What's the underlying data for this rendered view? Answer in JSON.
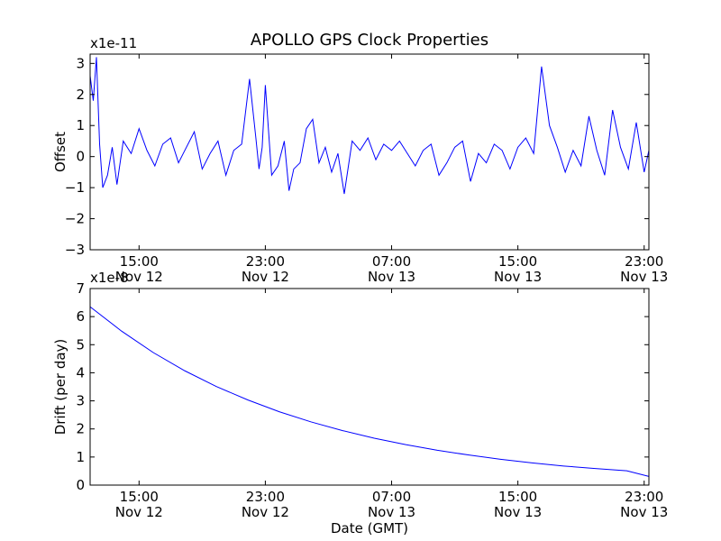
{
  "figure": {
    "title": "APOLLO GPS Clock Properties",
    "xlabel": "Date (GMT)"
  },
  "colors": {
    "line": "#0000ff",
    "axes": "#000000",
    "background": "#ffffff"
  },
  "chart_data": [
    {
      "type": "line",
      "title": "APOLLO GPS Clock Properties",
      "ylabel": "Offset",
      "exponent_label": "x1e-11",
      "xlim_hours": [
        11.9,
        47.3
      ],
      "ylim": [
        -3,
        3.3
      ],
      "yticks": [
        -3,
        -2,
        -1,
        0,
        1,
        2,
        3
      ],
      "xticks": [
        {
          "hour": 15,
          "time": "15:00",
          "date": "Nov 12"
        },
        {
          "hour": 23,
          "time": "23:00",
          "date": "Nov 12"
        },
        {
          "hour": 31,
          "time": "07:00",
          "date": "Nov 13"
        },
        {
          "hour": 39,
          "time": "15:00",
          "date": "Nov 13"
        },
        {
          "hour": 47,
          "time": "23:00",
          "date": "Nov 13"
        }
      ],
      "series": [
        {
          "name": "offset",
          "description": "noisy clock offset fluctuating mostly between -1 and 1 (x1e-11) with spikes",
          "x": [
            11.9,
            12.1,
            12.3,
            12.5,
            12.7,
            13.0,
            13.3,
            13.6,
            14.0,
            14.5,
            15.0,
            15.5,
            16.0,
            16.5,
            17.0,
            17.5,
            18.0,
            18.5,
            19.0,
            19.5,
            20.0,
            20.5,
            21.0,
            21.5,
            22.0,
            22.4,
            22.6,
            22.8,
            23.0,
            23.4,
            23.8,
            24.2,
            24.5,
            24.8,
            25.2,
            25.6,
            26.0,
            26.4,
            26.8,
            27.2,
            27.6,
            28.0,
            28.5,
            29.0,
            29.5,
            30.0,
            30.5,
            31.0,
            31.5,
            32.0,
            32.5,
            33.0,
            33.5,
            34.0,
            34.5,
            35.0,
            35.5,
            36.0,
            36.5,
            37.0,
            37.5,
            38.0,
            38.5,
            39.0,
            39.5,
            40.0,
            40.5,
            41.0,
            41.5,
            42.0,
            42.5,
            43.0,
            43.5,
            44.0,
            44.5,
            45.0,
            45.5,
            46.0,
            46.5,
            47.0,
            47.3
          ],
          "values": [
            2.6,
            1.8,
            3.2,
            0.4,
            -1.0,
            -0.6,
            0.3,
            -0.9,
            0.5,
            0.1,
            0.9,
            0.2,
            -0.3,
            0.4,
            0.6,
            -0.2,
            0.3,
            0.8,
            -0.4,
            0.1,
            0.5,
            -0.6,
            0.2,
            0.4,
            2.5,
            0.6,
            -0.4,
            0.3,
            2.3,
            -0.6,
            -0.3,
            0.5,
            -1.1,
            -0.4,
            -0.2,
            0.9,
            1.2,
            -0.2,
            0.3,
            -0.5,
            0.1,
            -1.2,
            0.5,
            0.2,
            0.6,
            -0.1,
            0.4,
            0.2,
            0.5,
            0.1,
            -0.3,
            0.2,
            0.4,
            -0.6,
            -0.2,
            0.3,
            0.5,
            -0.8,
            0.1,
            -0.2,
            0.4,
            0.2,
            -0.4,
            0.3,
            0.6,
            0.1,
            2.9,
            1.0,
            0.3,
            -0.5,
            0.2,
            -0.3,
            1.3,
            0.2,
            -0.6,
            1.5,
            0.3,
            -0.4,
            1.1,
            -0.5,
            0.2
          ]
        }
      ]
    },
    {
      "type": "line",
      "title": "",
      "ylabel": "Drift (per day)",
      "exponent_label": "x1e-8",
      "xlabel": "Date (GMT)",
      "xlim_hours": [
        11.9,
        47.3
      ],
      "ylim": [
        0,
        7
      ],
      "yticks": [
        0,
        1,
        2,
        3,
        4,
        5,
        6,
        7
      ],
      "xticks": [
        {
          "hour": 15,
          "time": "15:00",
          "date": "Nov 12"
        },
        {
          "hour": 23,
          "time": "23:00",
          "date": "Nov 12"
        },
        {
          "hour": 31,
          "time": "07:00",
          "date": "Nov 13"
        },
        {
          "hour": 39,
          "time": "15:00",
          "date": "Nov 13"
        },
        {
          "hour": 47,
          "time": "23:00",
          "date": "Nov 13"
        }
      ],
      "series": [
        {
          "name": "drift",
          "x": [
            11.9,
            13.9,
            15.9,
            17.9,
            19.9,
            21.9,
            23.9,
            25.9,
            27.9,
            29.9,
            31.9,
            33.9,
            35.9,
            37.9,
            39.9,
            41.9,
            43.9,
            45.9,
            47.3
          ],
          "values": [
            6.35,
            5.48,
            4.72,
            4.07,
            3.51,
            3.03,
            2.61,
            2.25,
            1.94,
            1.67,
            1.44,
            1.24,
            1.07,
            0.92,
            0.79,
            0.68,
            0.59,
            0.51,
            0.31
          ]
        }
      ]
    }
  ]
}
